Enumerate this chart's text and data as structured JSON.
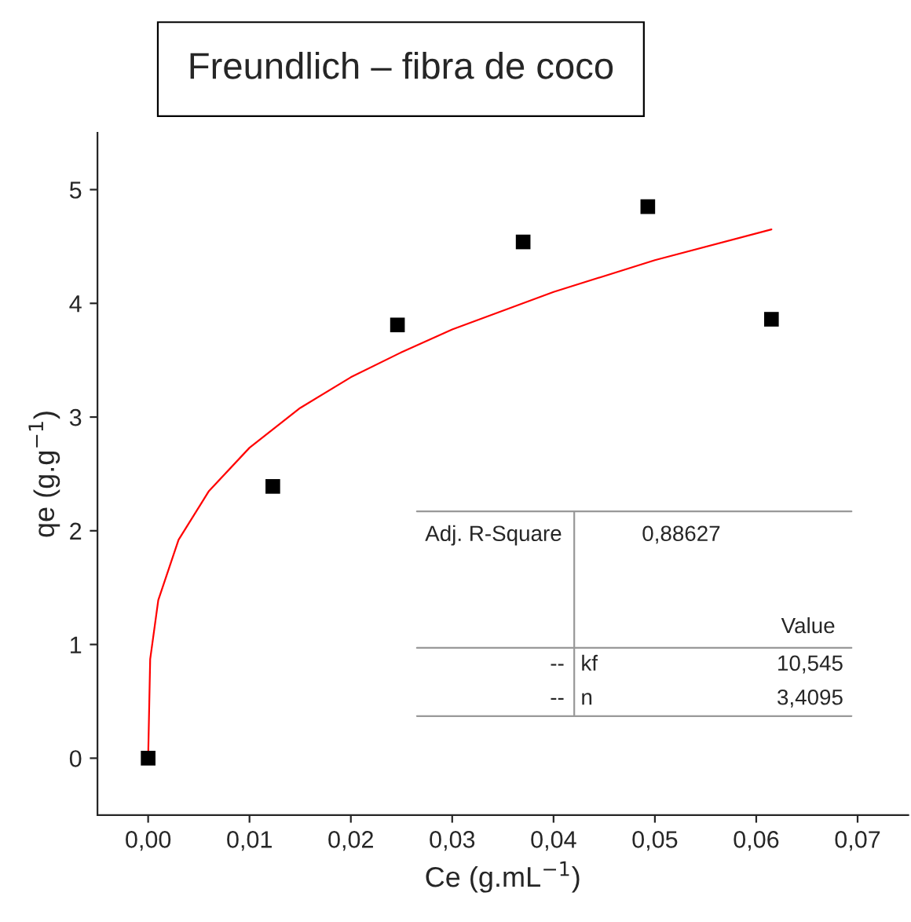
{
  "chart_data": {
    "type": "scatter",
    "title": "Freundlich – fibra de coco",
    "xlabel": "Ce (g.mL$^{−1}$)",
    "ylabel": "qe (g.g$^{−1}$)",
    "xlim": [
      -0.005,
      0.075
    ],
    "ylim": [
      -0.5,
      5.5
    ],
    "xticks": [
      {
        "value": 0,
        "label": "0,00"
      },
      {
        "value": 0.01,
        "label": "0,01"
      },
      {
        "value": 0.02,
        "label": "0,02"
      },
      {
        "value": 0.03,
        "label": "0,03"
      },
      {
        "value": 0.04,
        "label": "0,04"
      },
      {
        "value": 0.05,
        "label": "0,05"
      },
      {
        "value": 0.06,
        "label": "0,06"
      },
      {
        "value": 0.07,
        "label": "0,07"
      }
    ],
    "yticks": [
      0,
      1,
      2,
      3,
      4,
      5
    ],
    "grid": false,
    "series": [
      {
        "marker": "square",
        "color": "#000000",
        "x": [
          0,
          0.0123,
          0.0246,
          0.037,
          0.0493,
          0.0615
        ],
        "values": [
          0,
          2.39,
          3.81,
          4.54,
          4.85,
          3.86
        ]
      },
      {
        "type": "line",
        "marker": "none",
        "line_style": "solid",
        "color": "#ff0000",
        "x": [
          0,
          0.0002,
          0.001,
          0.003,
          0.006,
          0.01,
          0.015,
          0.02,
          0.025,
          0.03,
          0.04,
          0.05,
          0.0615
        ],
        "values": [
          0,
          0.87,
          1.39,
          1.92,
          2.35,
          2.73,
          3.08,
          3.35,
          3.57,
          3.77,
          4.1,
          4.38,
          4.65
        ]
      }
    ],
    "annotations": [
      "Adj. R-Square",
      "0,88627",
      "Value",
      "--",
      "kf",
      "10,545",
      "--",
      "n",
      "3,4095"
    ]
  }
}
